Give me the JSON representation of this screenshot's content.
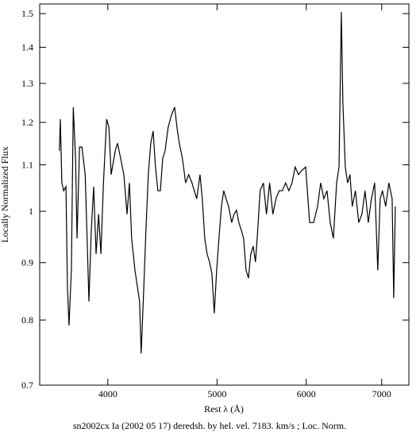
{
  "chart_data": {
    "type": "line",
    "title": "sn2002cx Ia (2002 05 17) deredsh. by hel. vel.  7183. km/s ;  Loc. Norm.",
    "x_label": "Rest λ (Å)",
    "y_label": "Locally Normalized Flux",
    "log_x": true,
    "log_y": true,
    "grid": false,
    "xlim": [
      3480,
      7400
    ],
    "ylim": [
      0.7,
      1.53
    ],
    "xticks": [
      4000,
      5000,
      6000,
      7000
    ],
    "yticks": [
      0.7,
      0.8,
      0.9,
      1,
      1.1,
      1.2,
      1.3,
      1.4,
      1.5
    ],
    "series": [
      {
        "name": "sn2002cx",
        "color": "#000000",
        "x": [
          3623,
          3630,
          3641,
          3655,
          3672,
          3683,
          3695,
          3713,
          3727,
          3745,
          3756,
          3775,
          3794,
          3819,
          3836,
          3848,
          3867,
          3886,
          3905,
          3925,
          3944,
          3964,
          3990,
          4009,
          4027,
          4061,
          4080,
          4106,
          4133,
          4160,
          4180,
          4199,
          4228,
          4248,
          4268,
          4282,
          4303,
          4324,
          4345,
          4367,
          4388,
          4409,
          4431,
          4453,
          4474,
          4496,
          4525,
          4555,
          4585,
          4607,
          4629,
          4659,
          4689,
          4719,
          4750,
          4773,
          4797,
          4829,
          4852,
          4876,
          4900,
          4924,
          4948,
          4972,
          4996,
          5020,
          5045,
          5069,
          5094,
          5119,
          5152,
          5177,
          5202,
          5228,
          5254,
          5279,
          5305,
          5331,
          5357,
          5383,
          5409,
          5433,
          5460,
          5496,
          5531,
          5567,
          5604,
          5640,
          5677,
          5714,
          5752,
          5790,
          5828,
          5866,
          5905,
          5944,
          5993,
          6042,
          6091,
          6140,
          6179,
          6220,
          6260,
          6301,
          6342,
          6384,
          6415,
          6446,
          6467,
          6498,
          6529,
          6561,
          6592,
          6635,
          6679,
          6722,
          6766,
          6811,
          6855,
          6900,
          6944,
          6978,
          7011,
          7058,
          7104,
          7151,
          7174,
          7197
        ],
        "values": [
          1.132,
          1.208,
          1.06,
          1.043,
          1.052,
          0.858,
          0.791,
          0.886,
          1.238,
          1.114,
          0.946,
          1.141,
          1.141,
          1.078,
          0.931,
          0.831,
          0.962,
          1.052,
          0.916,
          0.994,
          0.916,
          1.06,
          1.208,
          1.188,
          1.078,
          1.132,
          1.15,
          1.114,
          1.078,
          0.994,
          1.06,
          0.946,
          0.886,
          0.858,
          0.831,
          0.747,
          0.844,
          0.962,
          1.078,
          1.15,
          1.179,
          1.095,
          1.043,
          1.043,
          1.114,
          1.132,
          1.188,
          1.218,
          1.238,
          1.188,
          1.15,
          1.114,
          1.06,
          1.078,
          1.06,
          1.043,
          1.026,
          1.078,
          1.026,
          0.946,
          0.916,
          0.901,
          0.88,
          0.811,
          0.886,
          0.946,
          1.01,
          1.043,
          1.026,
          1.01,
          0.977,
          0.994,
          1.002,
          0.977,
          0.962,
          0.946,
          0.886,
          0.872,
          0.916,
          0.931,
          0.901,
          0.962,
          1.043,
          1.06,
          0.994,
          1.06,
          0.994,
          1.026,
          1.043,
          1.043,
          1.06,
          1.043,
          1.06,
          1.095,
          1.078,
          1.087,
          1.095,
          0.977,
          0.977,
          1.01,
          1.06,
          1.026,
          1.043,
          0.977,
          0.946,
          1.06,
          1.095,
          1.505,
          1.248,
          1.095,
          1.06,
          1.078,
          1.01,
          1.043,
          0.977,
          0.994,
          1.043,
          0.977,
          1.026,
          1.06,
          0.886,
          1.026,
          1.043,
          1.01,
          1.06,
          1.026,
          0.837,
          1.01
        ]
      }
    ]
  }
}
